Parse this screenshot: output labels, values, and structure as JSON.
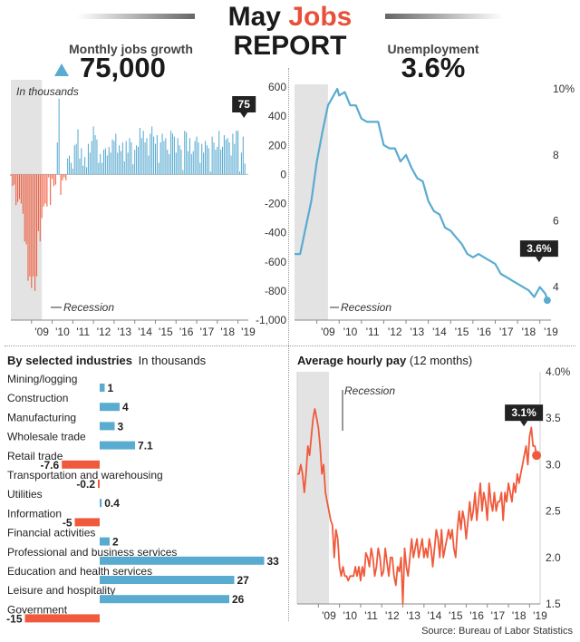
{
  "header": {
    "title_plain": "May ",
    "title_accent": "Jobs",
    "title_line2": "REPORT",
    "accent_color": "#e8503a"
  },
  "kpi_jobs": {
    "label": "Monthly jobs growth",
    "value": "75,000",
    "icon": "up-triangle-icon"
  },
  "kpi_unemployment": {
    "label": "Unemployment",
    "value": "3.6%"
  },
  "source": "Source: Bureau of Labor Statistics",
  "colors": {
    "blue": "#5aabd0",
    "red": "#f05a3c",
    "recession": "#e3e3e3",
    "callout": "#222222",
    "grid": "#d7d7d7",
    "dotted": "#9a9a9a"
  },
  "chart_data": [
    {
      "type": "bar",
      "id": "monthly_jobs",
      "annotation": "In thousands",
      "recession_label": "Recession",
      "callout": "75",
      "x_tick_labels": [
        "'09",
        "'10",
        "'11",
        "'12",
        "'13",
        "'14",
        "'15",
        "'16",
        "'17",
        "'18",
        "'19"
      ],
      "y_tick_labels": [
        "600",
        "400",
        "200",
        "0",
        "-200",
        "-400",
        "-600",
        "-800",
        "-1,000"
      ],
      "ylim": [
        -1000,
        650
      ],
      "xlim": [
        2008.0,
        2019.5
      ],
      "recession": [
        2008.0,
        2009.5
      ],
      "x": [
        2008.0,
        2008.083,
        2008.167,
        2008.25,
        2008.333,
        2008.417,
        2008.5,
        2008.583,
        2008.667,
        2008.75,
        2008.833,
        2008.917,
        2009.0,
        2009.083,
        2009.167,
        2009.25,
        2009.333,
        2009.417,
        2009.5,
        2009.583,
        2009.667,
        2009.75,
        2009.833,
        2009.917,
        2010.0,
        2010.083,
        2010.167,
        2010.25,
        2010.333,
        2010.417,
        2010.5,
        2010.583,
        2010.667,
        2010.75,
        2010.833,
        2010.917,
        2011.0,
        2011.083,
        2011.167,
        2011.25,
        2011.333,
        2011.417,
        2011.5,
        2011.583,
        2011.667,
        2011.75,
        2011.833,
        2011.917,
        2012.0,
        2012.083,
        2012.167,
        2012.25,
        2012.333,
        2012.417,
        2012.5,
        2012.583,
        2012.667,
        2012.75,
        2012.833,
        2012.917,
        2013.0,
        2013.083,
        2013.167,
        2013.25,
        2013.333,
        2013.417,
        2013.5,
        2013.583,
        2013.667,
        2013.75,
        2013.833,
        2013.917,
        2014.0,
        2014.083,
        2014.167,
        2014.25,
        2014.333,
        2014.417,
        2014.5,
        2014.583,
        2014.667,
        2014.75,
        2014.833,
        2014.917,
        2015.0,
        2015.083,
        2015.167,
        2015.25,
        2015.333,
        2015.417,
        2015.5,
        2015.583,
        2015.667,
        2015.75,
        2015.833,
        2015.917,
        2016.0,
        2016.083,
        2016.167,
        2016.25,
        2016.333,
        2016.417,
        2016.5,
        2016.583,
        2016.667,
        2016.75,
        2016.833,
        2016.917,
        2017.0,
        2017.083,
        2017.167,
        2017.25,
        2017.333,
        2017.417,
        2017.5,
        2017.583,
        2017.667,
        2017.75,
        2017.833,
        2017.917,
        2018.0,
        2018.083,
        2018.167,
        2018.25,
        2018.333,
        2018.417,
        2018.5,
        2018.583,
        2018.667,
        2018.75,
        2018.833,
        2018.917,
        2019.0,
        2019.083,
        2019.167,
        2019.25,
        2019.333
      ],
      "values": [
        -10,
        -80,
        -70,
        -210,
        -190,
        -170,
        -200,
        -270,
        -460,
        -480,
        -730,
        -700,
        -780,
        -700,
        -800,
        -700,
        -390,
        -460,
        -300,
        -220,
        -200,
        -220,
        -20,
        -210,
        -30,
        -80,
        -70,
        220,
        520,
        -140,
        -40,
        -20,
        -40,
        110,
        130,
        80,
        40,
        200,
        210,
        310,
        110,
        180,
        60,
        120,
        50,
        210,
        150,
        230,
        330,
        270,
        240,
        80,
        140,
        80,
        170,
        180,
        130,
        190,
        150,
        240,
        230,
        280,
        150,
        200,
        160,
        220,
        90,
        230,
        150,
        250,
        220,
        70,
        170,
        200,
        190,
        320,
        250,
        300,
        220,
        250,
        130,
        280,
        330,
        260,
        210,
        270,
        80,
        220,
        280,
        230,
        250,
        170,
        140,
        300,
        280,
        260,
        150,
        250,
        200,
        170,
        30,
        300,
        290,
        160,
        250,
        140,
        160,
        230,
        260,
        220,
        80,
        210,
        150,
        230,
        200,
        180,
        20,
        260,
        220,
        170,
        190,
        300,
        170,
        190,
        270,
        240,
        250,
        220,
        130,
        280,
        210,
        300,
        300,
        20,
        150,
        260,
        75
      ]
    },
    {
      "type": "line",
      "id": "unemployment",
      "series_name": "Unemployment",
      "recession_label": "Recession",
      "callout": "3.6%",
      "x_tick_labels": [
        "'09",
        "'10",
        "'11",
        "'12",
        "'13",
        "'14",
        "'15",
        "'16",
        "'17",
        "'18",
        "'19"
      ],
      "y_tick_labels": [
        "10%",
        "8",
        "6",
        "4"
      ],
      "ylim": [
        3.0,
        10.0
      ],
      "xlim": [
        2008.0,
        2019.5
      ],
      "recession": [
        2008.0,
        2009.5
      ],
      "x": [
        2008.0,
        2008.25,
        2008.5,
        2008.75,
        2009.0,
        2009.25,
        2009.5,
        2009.75,
        2009.917,
        2010.0,
        2010.25,
        2010.5,
        2010.75,
        2011.0,
        2011.25,
        2011.5,
        2011.75,
        2012.0,
        2012.25,
        2012.5,
        2012.75,
        2013.0,
        2013.25,
        2013.5,
        2013.75,
        2014.0,
        2014.25,
        2014.5,
        2014.75,
        2015.0,
        2015.25,
        2015.5,
        2015.75,
        2016.0,
        2016.25,
        2016.5,
        2016.75,
        2017.0,
        2017.25,
        2017.5,
        2017.75,
        2018.0,
        2018.25,
        2018.5,
        2018.75,
        2019.0,
        2019.25,
        2019.333
      ],
      "values": [
        5.0,
        5.0,
        5.8,
        6.6,
        7.8,
        8.7,
        9.5,
        9.8,
        10.0,
        9.8,
        9.9,
        9.5,
        9.5,
        9.1,
        9.0,
        9.0,
        9.0,
        8.3,
        8.2,
        8.2,
        7.8,
        8.0,
        7.6,
        7.3,
        7.2,
        6.6,
        6.3,
        6.2,
        5.8,
        5.7,
        5.5,
        5.3,
        5.0,
        4.9,
        5.0,
        4.9,
        4.8,
        4.7,
        4.4,
        4.3,
        4.2,
        4.1,
        4.0,
        3.9,
        3.7,
        4.0,
        3.8,
        3.6
      ]
    },
    {
      "type": "bar",
      "id": "industries",
      "orientation": "horizontal",
      "title": "By selected industries",
      "subtitle": "In thousands",
      "categories": [
        "Mining/logging",
        "Construction",
        "Manufacturing",
        "Wholesale trade",
        "Retail trade",
        "Transportation and warehousing",
        "Utilities",
        "Information",
        "Financial activities",
        "Professional and business services",
        "Education and health services",
        "Leisure and hospitality",
        "Government"
      ],
      "values": [
        1,
        4,
        3,
        7.1,
        -7.6,
        -0.2,
        0.4,
        -5,
        2,
        33,
        27,
        26,
        -15
      ],
      "value_labels": [
        "1",
        "4",
        "3",
        "7.1",
        "-7.6",
        "-0.2",
        "0.4",
        "-5",
        "2",
        "33",
        "27",
        "26",
        "-15"
      ]
    },
    {
      "type": "line",
      "id": "hourly_pay",
      "title": "Average hourly pay",
      "subtitle": "(12 months)",
      "recession_label": "Recession",
      "callout": "3.1%",
      "x_tick_labels": [
        "'09",
        "'10",
        "'11",
        "'12",
        "'13",
        "'14",
        "'15",
        "'16",
        "'17",
        "'18",
        "'19"
      ],
      "y_tick_labels": [
        "4.0%",
        "3.5",
        "3.0",
        "2.5",
        "2.0",
        "1.5"
      ],
      "ylim": [
        1.5,
        4.0
      ],
      "xlim": [
        2008.0,
        2019.5
      ],
      "recession": [
        2008.0,
        2009.5
      ],
      "x": [
        2008.0,
        2008.083,
        2008.167,
        2008.25,
        2008.333,
        2008.417,
        2008.5,
        2008.583,
        2008.667,
        2008.75,
        2008.833,
        2008.917,
        2009.0,
        2009.083,
        2009.167,
        2009.25,
        2009.333,
        2009.417,
        2009.5,
        2009.583,
        2009.667,
        2009.75,
        2009.833,
        2009.917,
        2010.0,
        2010.083,
        2010.167,
        2010.25,
        2010.333,
        2010.417,
        2010.5,
        2010.583,
        2010.667,
        2010.75,
        2010.833,
        2010.917,
        2011.0,
        2011.083,
        2011.167,
        2011.25,
        2011.333,
        2011.417,
        2011.5,
        2011.583,
        2011.667,
        2011.75,
        2011.833,
        2011.917,
        2012.0,
        2012.083,
        2012.167,
        2012.25,
        2012.333,
        2012.417,
        2012.5,
        2012.583,
        2012.667,
        2012.75,
        2012.833,
        2012.917,
        2013.0,
        2013.083,
        2013.167,
        2013.25,
        2013.333,
        2013.417,
        2013.5,
        2013.583,
        2013.667,
        2013.75,
        2013.833,
        2013.917,
        2014.0,
        2014.083,
        2014.167,
        2014.25,
        2014.333,
        2014.417,
        2014.5,
        2014.583,
        2014.667,
        2014.75,
        2014.833,
        2014.917,
        2015.0,
        2015.083,
        2015.167,
        2015.25,
        2015.333,
        2015.417,
        2015.5,
        2015.583,
        2015.667,
        2015.75,
        2015.833,
        2015.917,
        2016.0,
        2016.083,
        2016.167,
        2016.25,
        2016.333,
        2016.417,
        2016.5,
        2016.583,
        2016.667,
        2016.75,
        2016.833,
        2016.917,
        2017.0,
        2017.083,
        2017.167,
        2017.25,
        2017.333,
        2017.417,
        2017.5,
        2017.583,
        2017.667,
        2017.75,
        2017.833,
        2017.917,
        2018.0,
        2018.083,
        2018.167,
        2018.25,
        2018.333,
        2018.417,
        2018.5,
        2018.583,
        2018.667,
        2018.75,
        2018.833,
        2018.917,
        2019.0,
        2019.083,
        2019.167,
        2019.25,
        2019.333
      ],
      "values": [
        2.9,
        2.9,
        3.0,
        2.9,
        2.7,
        2.9,
        3.2,
        3.1,
        3.3,
        3.5,
        3.6,
        3.5,
        3.4,
        3.2,
        2.9,
        3.0,
        2.7,
        2.6,
        2.5,
        2.4,
        2.35,
        2.0,
        2.3,
        2.2,
        1.9,
        1.8,
        1.9,
        1.8,
        1.8,
        1.75,
        1.8,
        1.8,
        1.8,
        1.9,
        1.8,
        1.9,
        1.75,
        1.9,
        1.8,
        2.05,
        2.0,
        1.9,
        2.1,
        2.0,
        1.8,
        1.9,
        2.1,
        2.0,
        1.8,
        1.85,
        2.1,
        1.95,
        1.8,
        2.0,
        2.0,
        1.8,
        1.7,
        1.9,
        1.85,
        2.0,
        1.5,
        2.1,
        1.9,
        1.8,
        2.0,
        2.2,
        2.0,
        2.1,
        2.2,
        2.0,
        2.1,
        2.2,
        2.0,
        2.1,
        2.0,
        2.2,
        2.1,
        1.9,
        2.1,
        2.3,
        2.2,
        2.0,
        2.3,
        2.0,
        2.1,
        2.2,
        2.3,
        2.2,
        2.3,
        2.1,
        2.0,
        2.3,
        2.5,
        2.3,
        2.5,
        2.4,
        2.2,
        2.4,
        2.6,
        2.4,
        2.5,
        2.7,
        2.4,
        2.6,
        2.8,
        2.5,
        2.7,
        2.6,
        2.4,
        2.8,
        2.6,
        2.5,
        2.7,
        2.5,
        2.6,
        2.6,
        2.7,
        2.4,
        2.7,
        2.6,
        2.8,
        2.7,
        2.6,
        2.8,
        2.7,
        2.9,
        2.8,
        2.9,
        3.0,
        3.1,
        3.2,
        3.0,
        3.3,
        3.4,
        3.2,
        3.2,
        3.1
      ]
    }
  ]
}
